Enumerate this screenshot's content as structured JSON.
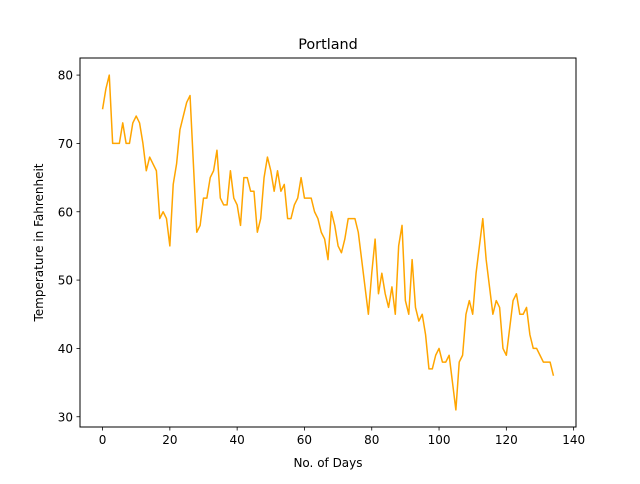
{
  "chart_data": {
    "type": "line",
    "title": "Portland",
    "xlabel": "No. of Days",
    "ylabel": "Temperature in Fahrenheit",
    "xlim": [
      -6.7,
      140.7
    ],
    "ylim": [
      28.5,
      82.5
    ],
    "xticks": [
      0,
      20,
      40,
      60,
      80,
      100,
      120,
      140
    ],
    "yticks": [
      30,
      40,
      50,
      60,
      70,
      80
    ],
    "grid": false,
    "series": [
      {
        "color": "#ffa500",
        "x": [
          0,
          1,
          2,
          3,
          4,
          5,
          6,
          7,
          8,
          9,
          10,
          11,
          12,
          13,
          14,
          15,
          16,
          17,
          18,
          19,
          20,
          21,
          22,
          23,
          24,
          25,
          26,
          27,
          28,
          29,
          30,
          31,
          32,
          33,
          34,
          35,
          36,
          37,
          38,
          39,
          40,
          41,
          42,
          43,
          44,
          45,
          46,
          47,
          48,
          49,
          50,
          51,
          52,
          53,
          54,
          55,
          56,
          57,
          58,
          59,
          60,
          61,
          62,
          63,
          64,
          65,
          66,
          67,
          68,
          69,
          70,
          71,
          72,
          73,
          74,
          75,
          76,
          77,
          78,
          79,
          80,
          81,
          82,
          83,
          84,
          85,
          86,
          87,
          88,
          89,
          90,
          91,
          92,
          93,
          94,
          95,
          96,
          97,
          98,
          99,
          100,
          101,
          102,
          103,
          104,
          105,
          106,
          107,
          108,
          109,
          110,
          111,
          112,
          113,
          114,
          115,
          116,
          117,
          118,
          119,
          120,
          121,
          122,
          123,
          124,
          125,
          126,
          127,
          128,
          129,
          130,
          131,
          132,
          133,
          134
        ],
        "y": [
          75,
          78,
          80,
          70,
          70,
          70,
          73,
          70,
          70,
          73,
          74,
          73,
          70,
          66,
          68,
          67,
          66,
          59,
          60,
          59,
          55,
          64,
          67,
          72,
          74,
          76,
          77,
          67,
          57,
          58,
          62,
          62,
          65,
          66,
          69,
          62,
          61,
          61,
          66,
          62,
          61,
          58,
          65,
          65,
          63,
          63,
          57,
          59,
          65,
          68,
          66,
          63,
          66,
          63,
          64,
          59,
          59,
          61,
          62,
          65,
          62,
          62,
          62,
          60,
          59,
          57,
          56,
          53,
          60,
          58,
          55,
          54,
          56,
          59,
          59,
          59,
          57,
          53,
          49,
          45,
          51,
          56,
          48,
          51,
          48,
          46,
          49,
          45,
          55,
          58,
          47,
          45,
          53,
          46,
          44,
          45,
          42,
          37,
          37,
          39,
          40,
          38,
          38,
          39,
          35,
          31,
          38,
          39,
          45,
          47,
          45,
          51,
          55,
          59,
          53,
          49,
          45,
          47,
          46,
          40,
          39,
          43,
          47,
          48,
          45,
          45,
          46,
          42,
          40,
          40,
          39,
          38,
          38,
          38,
          36
        ]
      }
    ]
  }
}
